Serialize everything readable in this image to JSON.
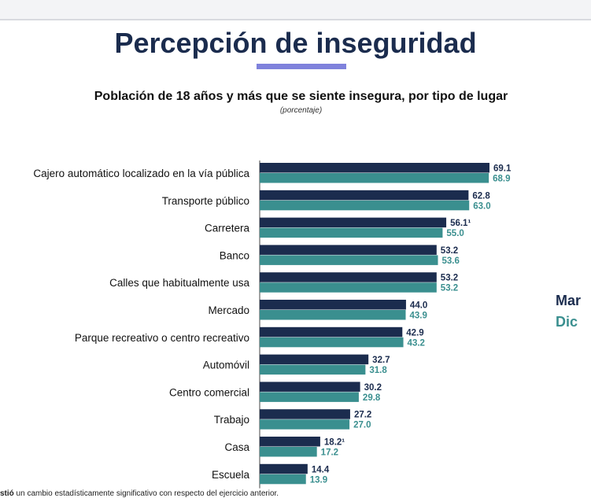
{
  "header": {
    "title": "Percepción de inseguridad",
    "subtitle": "Población de 18 años y más que se siente insegura, por tipo de lugar",
    "unit_note": "(porcentaje)"
  },
  "legend": {
    "series1": "Mar",
    "series2": "Dic"
  },
  "footnote": {
    "bold_part": "stió",
    "rest": " un cambio estadísticamente significativo con respecto del ejercicio anterior."
  },
  "colors": {
    "series1": "#1b2c4e",
    "series2": "#3a8f8f",
    "title": "#1b2c4e",
    "underline": "#7f82dc"
  },
  "chart_data": {
    "type": "bar",
    "orientation": "horizontal",
    "title": "Población de 18 años y más que se siente insegura, por tipo de lugar",
    "subtitle": "(porcentaje)",
    "categories": [
      "Cajero automático localizado en la vía pública",
      "Transporte público",
      "Carretera",
      "Banco",
      "Calles que habitualmente usa",
      "Mercado",
      "Parque recreativo o centro recreativo",
      "Automóvil",
      "Centro comercial",
      "Trabajo",
      "Casa",
      "Escuela"
    ],
    "series": [
      {
        "name": "Mar",
        "values": [
          69.1,
          62.8,
          56.1,
          53.2,
          53.2,
          44.0,
          42.9,
          32.7,
          30.2,
          27.2,
          18.2,
          14.4
        ],
        "labels": [
          "69.1",
          "62.8",
          "56.1¹",
          "53.2",
          "53.2",
          "44.0",
          "42.9",
          "32.7",
          "30.2",
          "27.2",
          "18.2¹",
          "14.4"
        ]
      },
      {
        "name": "Dic",
        "values": [
          68.9,
          63.0,
          55.0,
          53.6,
          53.2,
          43.9,
          43.2,
          31.8,
          29.8,
          27.0,
          17.2,
          13.9
        ],
        "labels": [
          "68.9",
          "63.0",
          "55.0",
          "53.6",
          "53.2",
          "43.9",
          "43.2",
          "31.8",
          "29.8",
          "27.0",
          "17.2",
          "13.9"
        ]
      }
    ],
    "xlim": [
      0,
      69.1
    ],
    "grid": false,
    "legend_position": "right"
  }
}
